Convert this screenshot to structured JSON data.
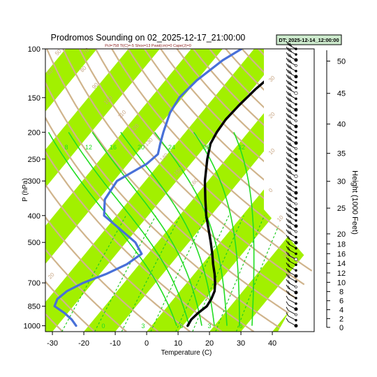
{
  "chart_data": {
    "type": "line",
    "title": "Prodromos Sounding on 02_2025-12-17_21:00:00",
    "subtitle": "Pcl=758 Tl(C)=-5 Shox=13 Pwat(cm)=0 Cape(J)=0",
    "valid_label": "DT: 2025-12-14_12:00:00",
    "xlabel": "Temperature (C)",
    "ylabel": "P (hPa)",
    "ylabel_right": "Height (1000 Feet)",
    "xlim": [
      -33,
      51
    ],
    "ylim": [
      1050,
      100
    ],
    "y_scale": "log",
    "x_ticks": [
      -30,
      -20,
      -10,
      0,
      10,
      20,
      30,
      40
    ],
    "y_ticks": [
      100,
      150,
      200,
      250,
      300,
      400,
      500,
      700,
      850,
      1000
    ],
    "height_ticks": [
      0,
      2,
      4,
      6,
      8,
      10,
      12,
      14,
      16,
      18,
      20,
      25,
      30,
      35,
      40,
      45,
      50
    ],
    "dry_adiabat_labels": [
      "50",
      "60",
      "70",
      "80",
      "90",
      "100",
      "110",
      "120",
      "130",
      "140",
      "150",
      "160",
      "30",
      "20",
      "10",
      "0",
      "10",
      "20",
      "30",
      "20"
    ],
    "mixing_ratio_labels": [
      "8",
      "12",
      "16",
      "20",
      "24",
      "28",
      "32"
    ],
    "mixing_ratio_bottom_labels": [
      "0",
      "3",
      "6",
      "3",
      "6"
    ],
    "colors": {
      "isotherm_band": "#a2f000",
      "dry_adiabat": "#d0b48c",
      "moist_adiabat": "#22dd22",
      "mixing_ratio": "#22cc22",
      "temperature": "#000000",
      "dewpoint": "#4870d8",
      "dt_box": "#cdeacd"
    },
    "series": [
      {
        "name": "Temperature",
        "points": [
          [
            1000,
            11.5
          ],
          [
            950,
            11
          ],
          [
            900,
            11.5
          ],
          [
            850,
            12.5
          ],
          [
            800,
            12
          ],
          [
            750,
            11
          ],
          [
            700,
            9
          ],
          [
            650,
            6.5
          ],
          [
            600,
            3.5
          ],
          [
            550,
            0.5
          ],
          [
            500,
            -3
          ],
          [
            450,
            -7
          ],
          [
            400,
            -11.5
          ],
          [
            350,
            -16
          ],
          [
            300,
            -21
          ],
          [
            250,
            -26
          ],
          [
            220,
            -29
          ],
          [
            200,
            -30
          ],
          [
            180,
            -30.5
          ],
          [
            160,
            -30
          ],
          [
            140,
            -29
          ],
          [
            120,
            -27
          ],
          [
            100,
            -23
          ]
        ]
      },
      {
        "name": "Dewpoint",
        "points": [
          [
            1000,
            -24
          ],
          [
            950,
            -27
          ],
          [
            900,
            -31
          ],
          [
            850,
            -36
          ],
          [
            800,
            -37
          ],
          [
            750,
            -36
          ],
          [
            700,
            -33
          ],
          [
            650,
            -28
          ],
          [
            600,
            -24
          ],
          [
            550,
            -22
          ],
          [
            500,
            -27
          ],
          [
            450,
            -35
          ],
          [
            400,
            -44
          ],
          [
            350,
            -48
          ],
          [
            300,
            -49
          ],
          [
            260,
            -44
          ],
          [
            240,
            -43
          ],
          [
            220,
            -45
          ],
          [
            200,
            -47
          ],
          [
            170,
            -50
          ],
          [
            150,
            -51
          ],
          [
            130,
            -50
          ],
          [
            110,
            -47
          ],
          [
            100,
            -44
          ]
        ]
      }
    ]
  }
}
